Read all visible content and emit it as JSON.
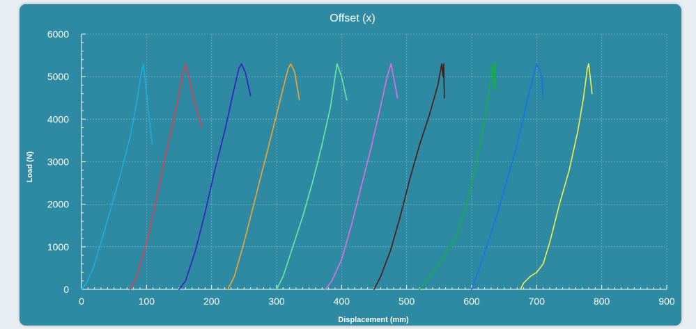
{
  "chart_data": {
    "type": "line",
    "title": "Offset (x)",
    "xlabel": "Displacement (mm)",
    "ylabel": "Load (N)",
    "xlim": [
      0,
      900
    ],
    "ylim": [
      0,
      6000
    ],
    "x_ticks": [
      0,
      100,
      200,
      300,
      400,
      500,
      600,
      700,
      800,
      900
    ],
    "y_ticks": [
      0,
      1000,
      2000,
      3000,
      4000,
      5000,
      6000
    ],
    "grid": true,
    "legend": "none",
    "series": [
      {
        "color": "#1aaee0",
        "points": [
          [
            0,
            0
          ],
          [
            8,
            150
          ],
          [
            18,
            500
          ],
          [
            30,
            1100
          ],
          [
            45,
            1900
          ],
          [
            60,
            2700
          ],
          [
            75,
            3600
          ],
          [
            85,
            4400
          ],
          [
            91,
            5000
          ],
          [
            95,
            5300
          ],
          [
            100,
            4600
          ],
          [
            105,
            3900
          ],
          [
            109,
            3400
          ]
        ]
      },
      {
        "color": "#e04050",
        "points": [
          [
            75,
            0
          ],
          [
            85,
            300
          ],
          [
            100,
            1100
          ],
          [
            115,
            2100
          ],
          [
            130,
            3200
          ],
          [
            145,
            4200
          ],
          [
            155,
            5000
          ],
          [
            160,
            5300
          ],
          [
            165,
            5000
          ],
          [
            172,
            4500
          ],
          [
            185,
            3800
          ]
        ]
      },
      {
        "color": "#3a1cc4",
        "points": [
          [
            150,
            0
          ],
          [
            160,
            200
          ],
          [
            175,
            900
          ],
          [
            190,
            1800
          ],
          [
            205,
            2800
          ],
          [
            220,
            3700
          ],
          [
            233,
            4600
          ],
          [
            242,
            5200
          ],
          [
            246,
            5300
          ],
          [
            252,
            5100
          ],
          [
            260,
            4550
          ]
        ]
      },
      {
        "color": "#f0a830",
        "points": [
          [
            225,
            0
          ],
          [
            235,
            300
          ],
          [
            250,
            1100
          ],
          [
            265,
            2000
          ],
          [
            280,
            2900
          ],
          [
            295,
            3800
          ],
          [
            308,
            4600
          ],
          [
            318,
            5200
          ],
          [
            322,
            5300
          ],
          [
            328,
            5100
          ],
          [
            335,
            4450
          ]
        ]
      },
      {
        "color": "#70e8a0",
        "points": [
          [
            300,
            0
          ],
          [
            310,
            300
          ],
          [
            325,
            1000
          ],
          [
            340,
            1700
          ],
          [
            355,
            2500
          ],
          [
            370,
            3400
          ],
          [
            383,
            4300
          ],
          [
            390,
            5000
          ],
          [
            393,
            5300
          ],
          [
            400,
            5000
          ],
          [
            408,
            4450
          ]
        ]
      },
      {
        "color": "#e070e0",
        "points": [
          [
            375,
            0
          ],
          [
            385,
            200
          ],
          [
            400,
            700
          ],
          [
            415,
            1500
          ],
          [
            430,
            2400
          ],
          [
            445,
            3300
          ],
          [
            460,
            4300
          ],
          [
            470,
            5000
          ],
          [
            476,
            5300
          ],
          [
            481,
            4900
          ],
          [
            486,
            4500
          ]
        ]
      },
      {
        "color": "#4a1a10",
        "points": [
          [
            450,
            0
          ],
          [
            460,
            300
          ],
          [
            475,
            900
          ],
          [
            490,
            1700
          ],
          [
            505,
            2600
          ],
          [
            520,
            3400
          ],
          [
            535,
            4100
          ],
          [
            548,
            4800
          ],
          [
            554,
            5300
          ],
          [
            556,
            5000
          ],
          [
            557,
            5300
          ],
          [
            558,
            4500
          ]
        ]
      },
      {
        "color": "#12b040",
        "points": [
          [
            520,
            0
          ],
          [
            535,
            300
          ],
          [
            555,
            700
          ],
          [
            575,
            1200
          ],
          [
            590,
            1900
          ],
          [
            605,
            2800
          ],
          [
            618,
            3800
          ],
          [
            626,
            4600
          ],
          [
            631,
            5200
          ],
          [
            633,
            5300
          ],
          [
            635,
            4700
          ],
          [
            636,
            5300
          ],
          [
            637,
            4700
          ]
        ]
      },
      {
        "color": "#1a70e8",
        "points": [
          [
            600,
            0
          ],
          [
            612,
            500
          ],
          [
            625,
            1100
          ],
          [
            640,
            1800
          ],
          [
            655,
            2600
          ],
          [
            670,
            3400
          ],
          [
            682,
            4200
          ],
          [
            693,
            4900
          ],
          [
            700,
            5300
          ],
          [
            705,
            5150
          ],
          [
            708,
            5000
          ],
          [
            710,
            4500
          ]
        ]
      },
      {
        "color": "#f0f050",
        "points": [
          [
            675,
            0
          ],
          [
            680,
            150
          ],
          [
            690,
            300
          ],
          [
            700,
            400
          ],
          [
            710,
            600
          ],
          [
            720,
            1100
          ],
          [
            735,
            2000
          ],
          [
            750,
            2800
          ],
          [
            763,
            3700
          ],
          [
            772,
            4500
          ],
          [
            778,
            5200
          ],
          [
            780,
            5300
          ],
          [
            783,
            4900
          ],
          [
            785,
            4600
          ]
        ]
      }
    ]
  }
}
